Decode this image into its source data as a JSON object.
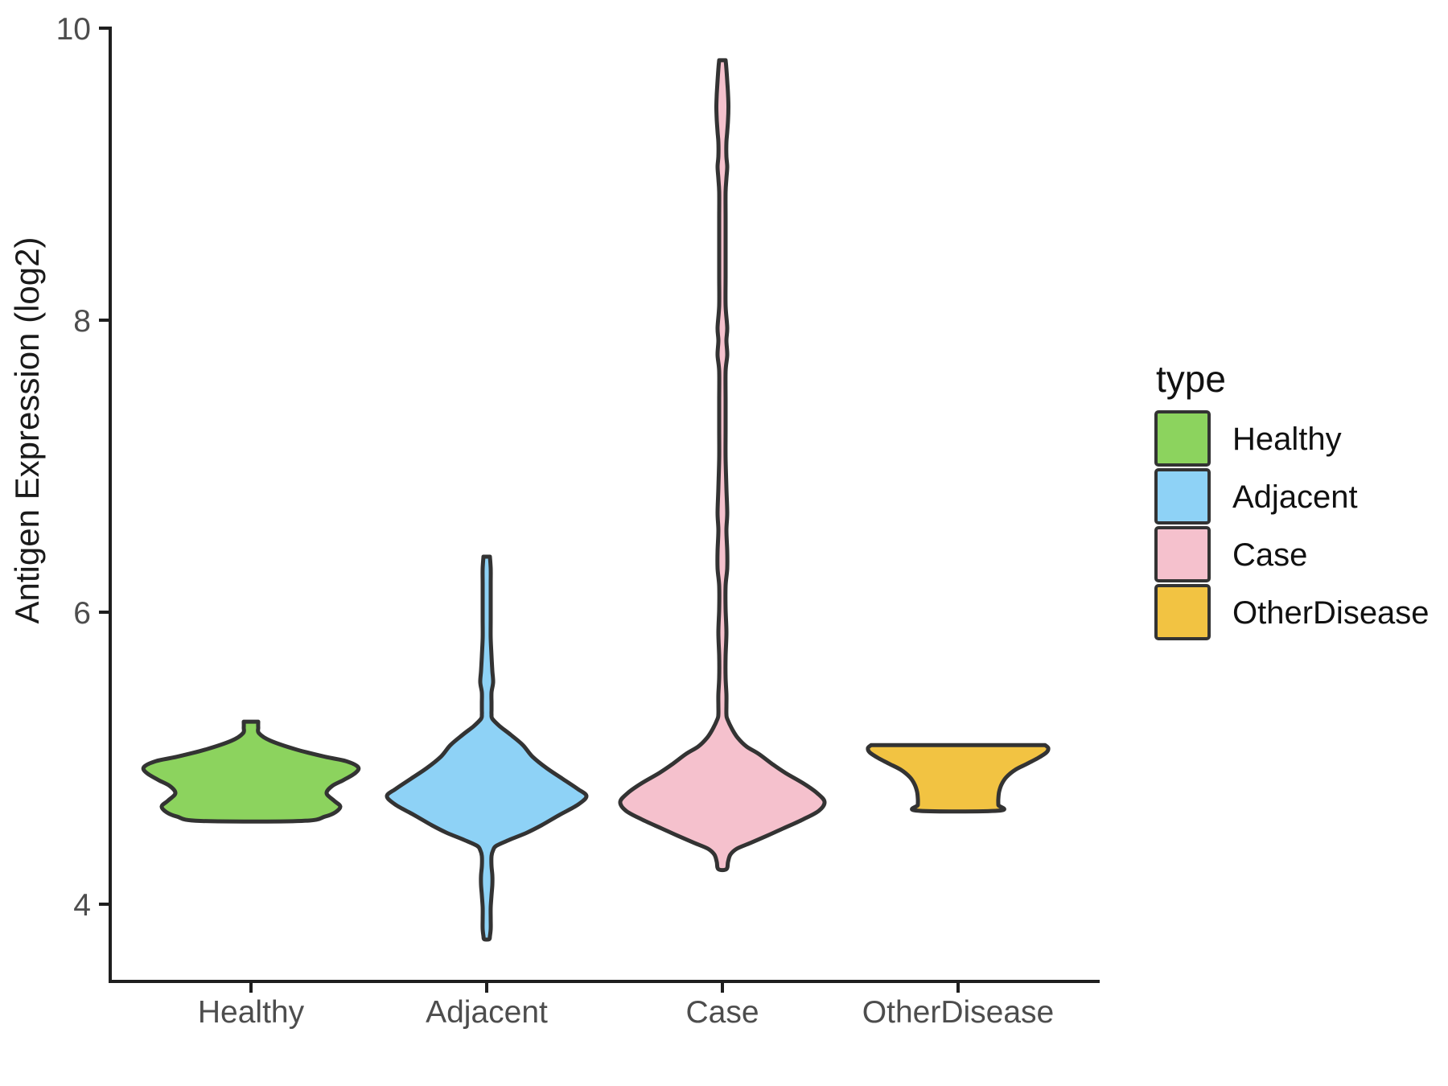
{
  "chart_data": {
    "type": "violin",
    "title": "",
    "xlabel": "",
    "ylabel": "Antigen Expression (log2)",
    "categories": [
      "Healthy",
      "Adjacent",
      "Case",
      "OtherDisease"
    ],
    "y_ticks": [
      4,
      6,
      8,
      10
    ],
    "ylim": [
      3.45,
      10.0
    ],
    "grid": "off",
    "panel_background": "#ffffff",
    "axis_color": "#1f1f1f",
    "tick_text_color": "#4d4d4d",
    "outline_color": "#333333",
    "legend": {
      "title": "type",
      "position": "right",
      "entries": [
        {
          "label": "Healthy",
          "color": "#8CD35E"
        },
        {
          "label": "Adjacent",
          "color": "#8ED2F6"
        },
        {
          "label": "Case",
          "color": "#F5C1CD"
        },
        {
          "label": "OtherDisease",
          "color": "#F2C342"
        }
      ]
    },
    "series": [
      {
        "name": "Healthy",
        "color": "#8CD35E",
        "min": 4.57,
        "max": 5.25,
        "peak_density_at": 4.93,
        "shape_note": "wide body ~4.6-5.0 with waist at 4.76, small stub to 5.25, trimmed flat bottom",
        "profile": [
          [
            5.25,
            9
          ],
          [
            5.21,
            9
          ],
          [
            5.17,
            10
          ],
          [
            5.12,
            24
          ],
          [
            5.06,
            56
          ],
          [
            5.01,
            92
          ],
          [
            4.98,
            118
          ],
          [
            4.94,
            133
          ],
          [
            4.9,
            130
          ],
          [
            4.85,
            115
          ],
          [
            4.81,
            101
          ],
          [
            4.76,
            94
          ],
          [
            4.71,
            103
          ],
          [
            4.67,
            111
          ],
          [
            4.63,
            105
          ],
          [
            4.6,
            92
          ],
          [
            4.57,
            63
          ]
        ]
      },
      {
        "name": "Adjacent",
        "color": "#8ED2F6",
        "min": 3.76,
        "max": 6.38,
        "peak_density_at": 4.74,
        "shape_note": "diamond body ~4.4-5.3, thin tails up to 6.38 and down to 3.76",
        "profile": [
          [
            6.38,
            4
          ],
          [
            6.3,
            5
          ],
          [
            6.2,
            5
          ],
          [
            6.08,
            5
          ],
          [
            5.95,
            5
          ],
          [
            5.82,
            5
          ],
          [
            5.7,
            6
          ],
          [
            5.6,
            7
          ],
          [
            5.52,
            8
          ],
          [
            5.45,
            6
          ],
          [
            5.38,
            6
          ],
          [
            5.33,
            6
          ],
          [
            5.3,
            6
          ],
          [
            5.27,
            7
          ],
          [
            5.22,
            16
          ],
          [
            5.16,
            30
          ],
          [
            5.09,
            45
          ],
          [
            5.01,
            57
          ],
          [
            4.93,
            75
          ],
          [
            4.86,
            94
          ],
          [
            4.79,
            113
          ],
          [
            4.74,
            124
          ],
          [
            4.68,
            113
          ],
          [
            4.61,
            90
          ],
          [
            4.54,
            68
          ],
          [
            4.49,
            50
          ],
          [
            4.44,
            28
          ],
          [
            4.4,
            12
          ],
          [
            4.37,
            8
          ],
          [
            4.33,
            6
          ],
          [
            4.26,
            6
          ],
          [
            4.2,
            7
          ],
          [
            4.13,
            7
          ],
          [
            4.06,
            6
          ],
          [
            3.98,
            5
          ],
          [
            3.9,
            5
          ],
          [
            3.83,
            5
          ],
          [
            3.78,
            4
          ],
          [
            3.76,
            3
          ]
        ]
      },
      {
        "name": "Case",
        "color": "#F5C1CD",
        "min": 4.24,
        "max": 9.78,
        "peak_density_at": 4.7,
        "shape_note": "diamond body ~4.3-5.3, very long thin tail to 9.78 with small blob near 9.46 and minor bulges at ~9.05, 7.9, 6.6, 6.3",
        "profile": [
          [
            9.78,
            4
          ],
          [
            9.72,
            5
          ],
          [
            9.64,
            6
          ],
          [
            9.55,
            7
          ],
          [
            9.46,
            7.5
          ],
          [
            9.37,
            7
          ],
          [
            9.29,
            6
          ],
          [
            9.22,
            5
          ],
          [
            9.12,
            5
          ],
          [
            9.05,
            6
          ],
          [
            8.97,
            5
          ],
          [
            8.88,
            4
          ],
          [
            8.7,
            4
          ],
          [
            8.5,
            4
          ],
          [
            8.3,
            4
          ],
          [
            8.1,
            4
          ],
          [
            7.95,
            6
          ],
          [
            7.86,
            5
          ],
          [
            7.76,
            6
          ],
          [
            7.65,
            4
          ],
          [
            7.45,
            4
          ],
          [
            7.25,
            4
          ],
          [
            7.05,
            4
          ],
          [
            6.85,
            5
          ],
          [
            6.68,
            6
          ],
          [
            6.56,
            5
          ],
          [
            6.42,
            6
          ],
          [
            6.3,
            6
          ],
          [
            6.18,
            4
          ],
          [
            6.02,
            4
          ],
          [
            5.86,
            5
          ],
          [
            5.7,
            4
          ],
          [
            5.55,
            4
          ],
          [
            5.44,
            5
          ],
          [
            5.36,
            5
          ],
          [
            5.3,
            5
          ],
          [
            5.27,
            6
          ],
          [
            5.2,
            12
          ],
          [
            5.14,
            19
          ],
          [
            5.08,
            30
          ],
          [
            5.03,
            45
          ],
          [
            4.96,
            62
          ],
          [
            4.9,
            78
          ],
          [
            4.83,
            100
          ],
          [
            4.76,
            118
          ],
          [
            4.7,
            127
          ],
          [
            4.64,
            120
          ],
          [
            4.58,
            100
          ],
          [
            4.52,
            76
          ],
          [
            4.47,
            56
          ],
          [
            4.42,
            35
          ],
          [
            4.38,
            18
          ],
          [
            4.34,
            10
          ],
          [
            4.29,
            7
          ],
          [
            4.24,
            5
          ]
        ]
      },
      {
        "name": "OtherDisease",
        "color": "#F2C342",
        "min": 4.64,
        "max": 5.09,
        "peak_density_at": 5.07,
        "shape_note": "anvil shape: wide flat top at 5.09, concave taper to narrower flat bottom at 4.64",
        "profile": [
          [
            5.09,
            108
          ],
          [
            5.07,
            112
          ],
          [
            5.04,
            110
          ],
          [
            5.0,
            99
          ],
          [
            4.96,
            85
          ],
          [
            4.92,
            71
          ],
          [
            4.87,
            60
          ],
          [
            4.82,
            54
          ],
          [
            4.77,
            51
          ],
          [
            4.72,
            50
          ],
          [
            4.68,
            50
          ],
          [
            4.64,
            50
          ]
        ]
      }
    ]
  }
}
